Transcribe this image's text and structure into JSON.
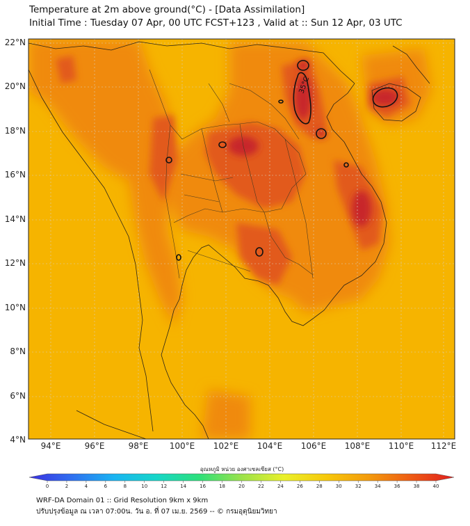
{
  "title": {
    "line1": "Temperature at 2m above ground(°C) - [Data Assimilation]",
    "line2": "Initial Time : Tuesday 07 Apr, 00 UTC FCST+123 , Valid at :: Sun 12 Apr, 03 UTC"
  },
  "map": {
    "lat_labels": [
      "22°N",
      "20°N",
      "18°N",
      "16°N",
      "14°N",
      "12°N",
      "10°N",
      "8°N",
      "6°N",
      "4°N"
    ],
    "lon_labels": [
      "94°E",
      "96°E",
      "98°E",
      "100°E",
      "102°E",
      "104°E",
      "106°E",
      "108°E",
      "110°E",
      "112°E"
    ],
    "contour_label": "35°C",
    "colors": {
      "base": "#f6b400",
      "warm": "#f08a10",
      "hot": "#e25a1a",
      "hottest": "#c8282a"
    }
  },
  "colorbar": {
    "title": "อุณหภูมิ หน่วย องศาเซลเซียส (°C)",
    "ticks": [
      "0",
      "2",
      "4",
      "6",
      "8",
      "10",
      "12",
      "14",
      "16",
      "18",
      "20",
      "22",
      "24",
      "26",
      "28",
      "30",
      "32",
      "34",
      "36",
      "38",
      "40"
    ],
    "min": 0,
    "max": 40,
    "stops": [
      "#3a2fe0",
      "#2f6ff0",
      "#19b4f2",
      "#16d6c8",
      "#2de07a",
      "#9be24a",
      "#eaf02a",
      "#f7c80a",
      "#f39a0c",
      "#ee5a14",
      "#e01e1e"
    ]
  },
  "footer": {
    "line1": "WRF-DA Domain 01 :: Grid Resolution 9km x 9km",
    "line2": "ปรับปรุงข้อมูล ณ เวลา 07:00น. วัน อ. ที่ 07 เม.ย. 2569 -- © กรมอุตุนิยมวิทยา"
  }
}
